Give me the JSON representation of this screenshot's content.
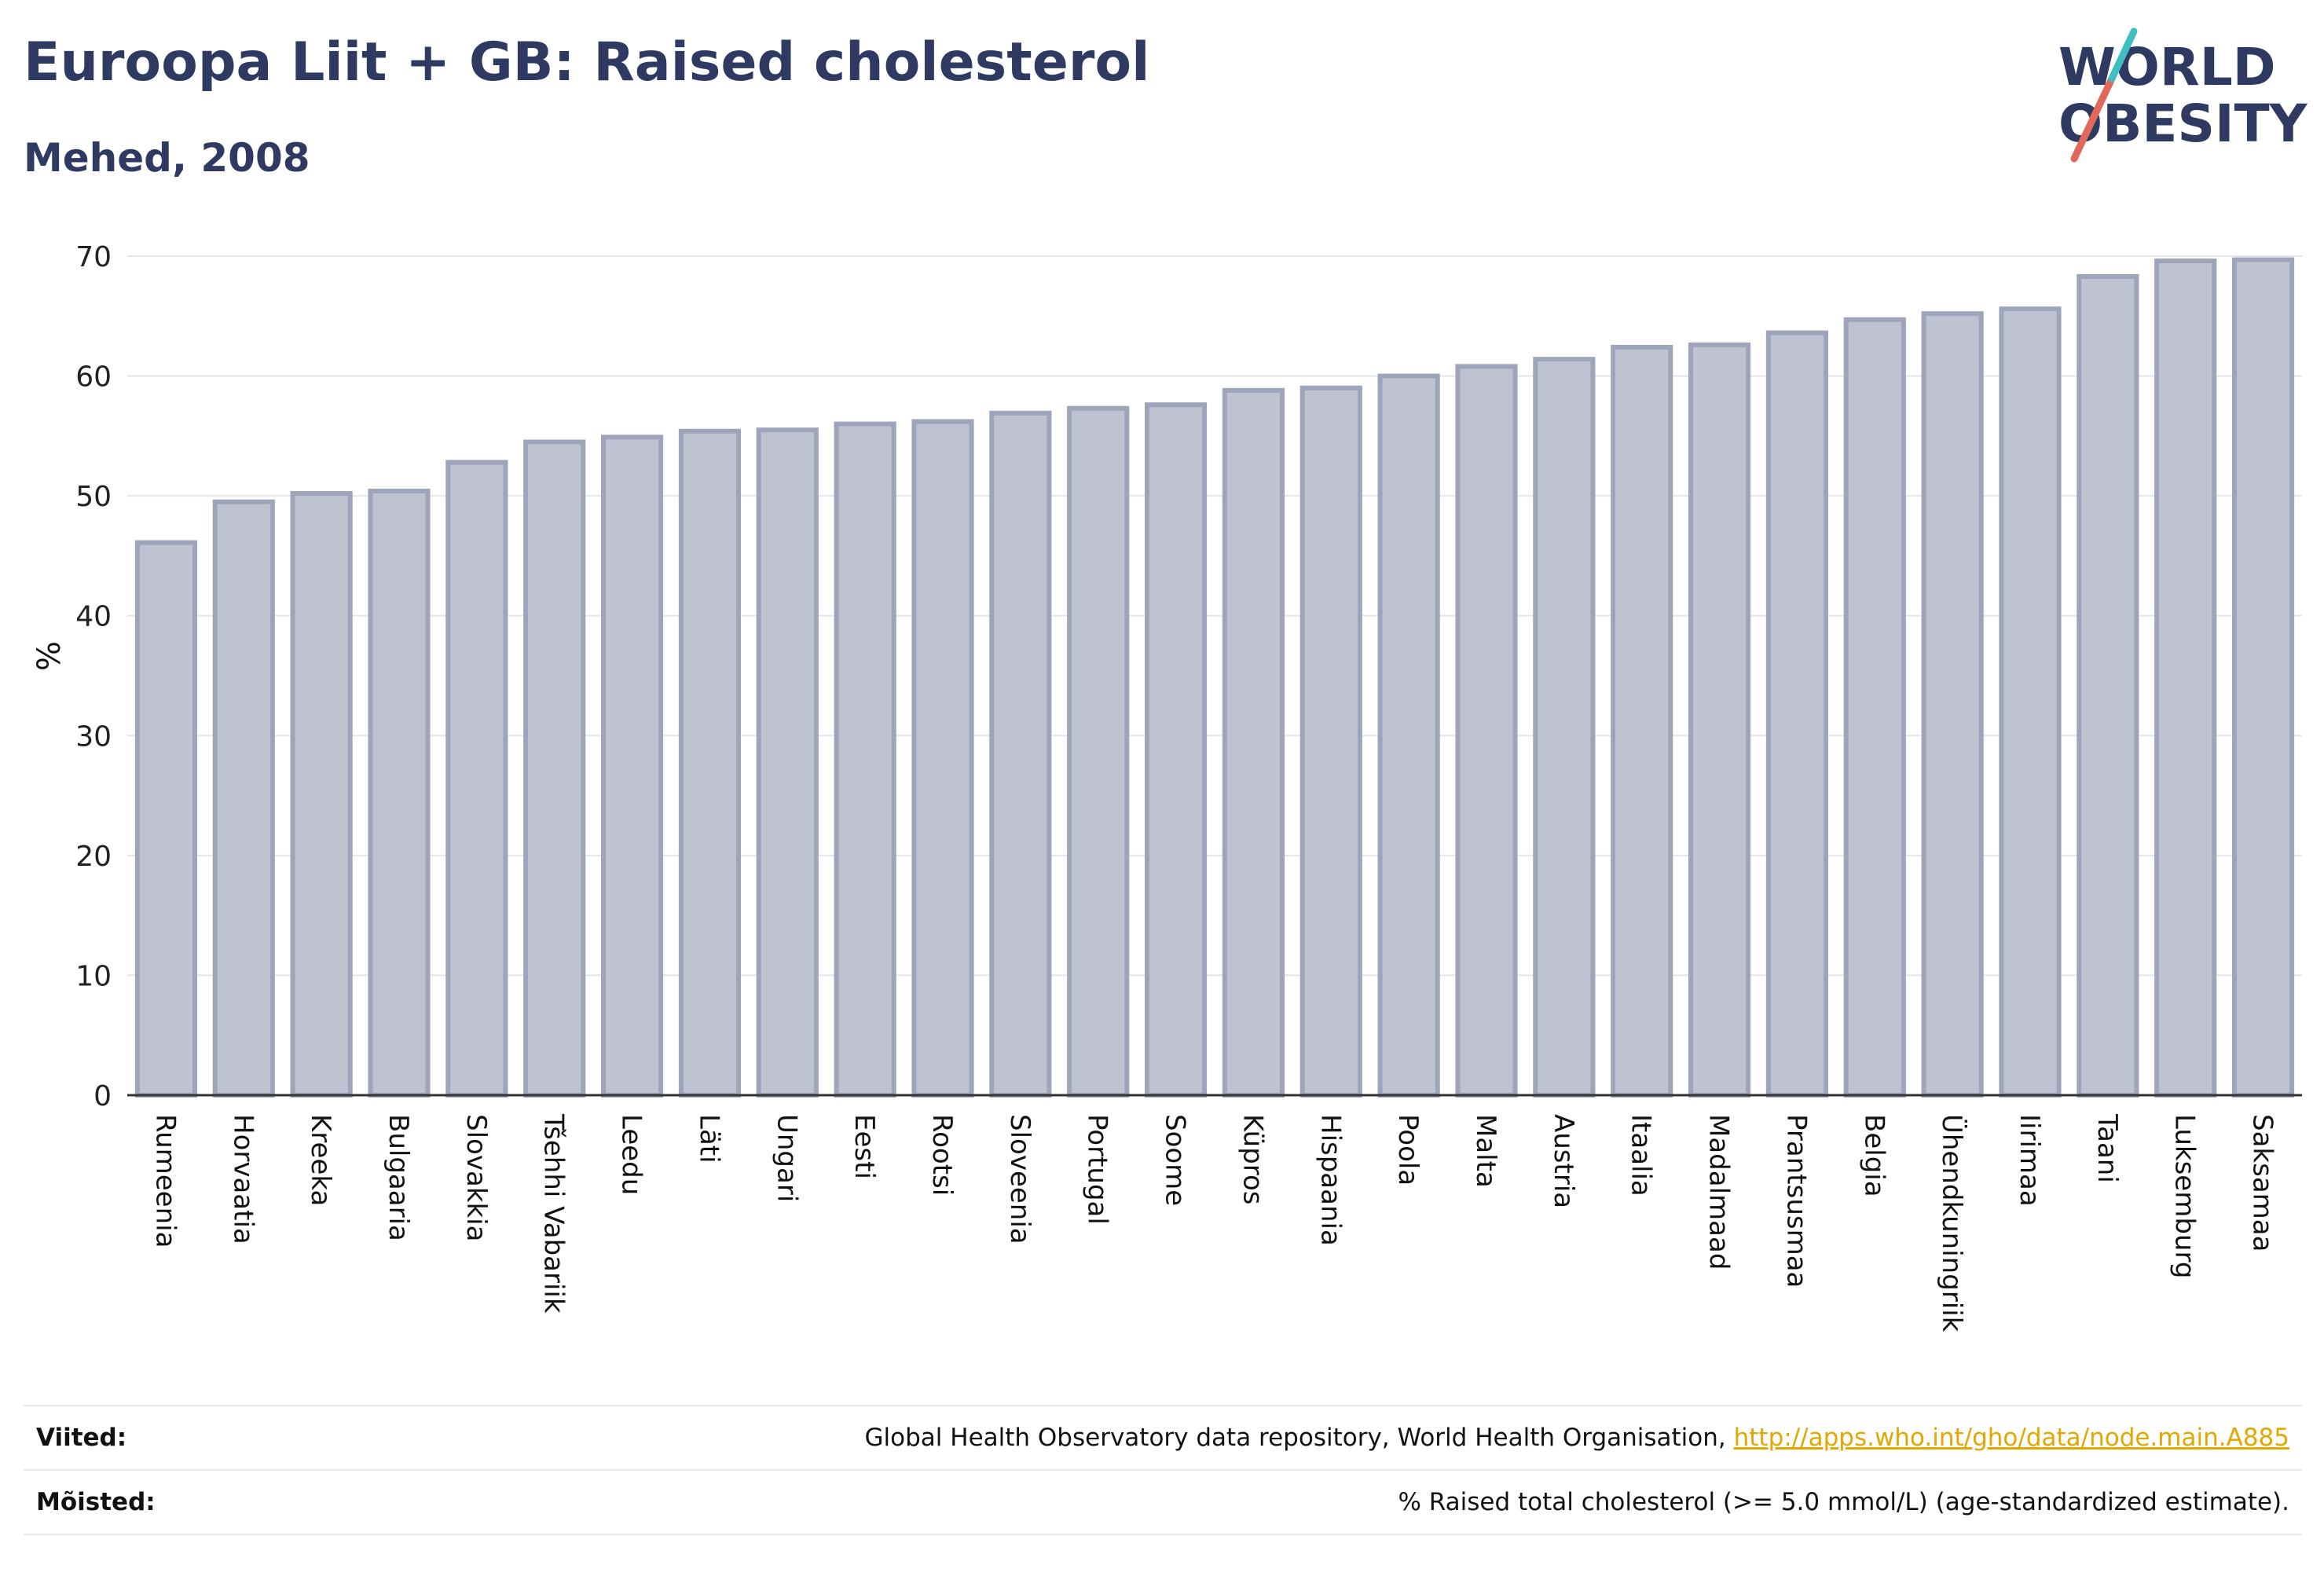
{
  "header": {
    "title": "Euroopa Liit + GB: Raised cholesterol",
    "subtitle": "Mehed, 2008"
  },
  "logo": {
    "line1": "WORLD",
    "line2": "OBESITY",
    "slash_colors": [
      "#e2685a",
      "#3fbfbf"
    ]
  },
  "colors": {
    "bar_fill": "#bfc3d1",
    "bar_stroke": "#9ea4ba",
    "axis": "#333333",
    "grid": "#e4e6ec",
    "title": "#2e3a62",
    "link": "#e0a800"
  },
  "chart_data": {
    "type": "bar",
    "title": "Euroopa Liit + GB: Raised cholesterol",
    "subtitle": "Mehed, 2008",
    "xlabel": "",
    "ylabel": "%",
    "ylim": [
      0,
      70
    ],
    "yticks": [
      0,
      10,
      20,
      30,
      40,
      50,
      60,
      70
    ],
    "grid": true,
    "categories": [
      "Rumeenia",
      "Horvaatia",
      "Kreeka",
      "Bulgaaria",
      "Slovakkia",
      "Tšehhi Vabariik",
      "Leedu",
      "Läti",
      "Ungari",
      "Eesti",
      "Rootsi",
      "Sloveenia",
      "Portugal",
      "Soome",
      "Küpros",
      "Hispaania",
      "Poola",
      "Malta",
      "Austria",
      "Itaalia",
      "Madalmaad",
      "Prantsusmaa",
      "Belgia",
      "Ühendkuningriik",
      "Iirimaa",
      "Taani",
      "Luksemburg",
      "Saksamaa"
    ],
    "values": [
      46.1,
      49.5,
      50.2,
      50.4,
      52.8,
      54.5,
      54.9,
      55.4,
      55.5,
      56.0,
      56.2,
      56.9,
      57.3,
      57.6,
      58.8,
      59.0,
      60.0,
      60.8,
      61.4,
      62.4,
      62.6,
      63.6,
      64.7,
      65.2,
      65.6,
      68.3,
      69.6,
      69.7
    ]
  },
  "footer": {
    "sources_label": "Viited:",
    "sources_text": "Global Health Observatory data repository, World Health Organisation, ",
    "sources_link": "http://apps.who.int/gho/data/node.main.A885",
    "definitions_label": "Mõisted:",
    "definitions_text": "% Raised total cholesterol (>= 5.0 mmol/L) (age-standardized estimate)."
  }
}
